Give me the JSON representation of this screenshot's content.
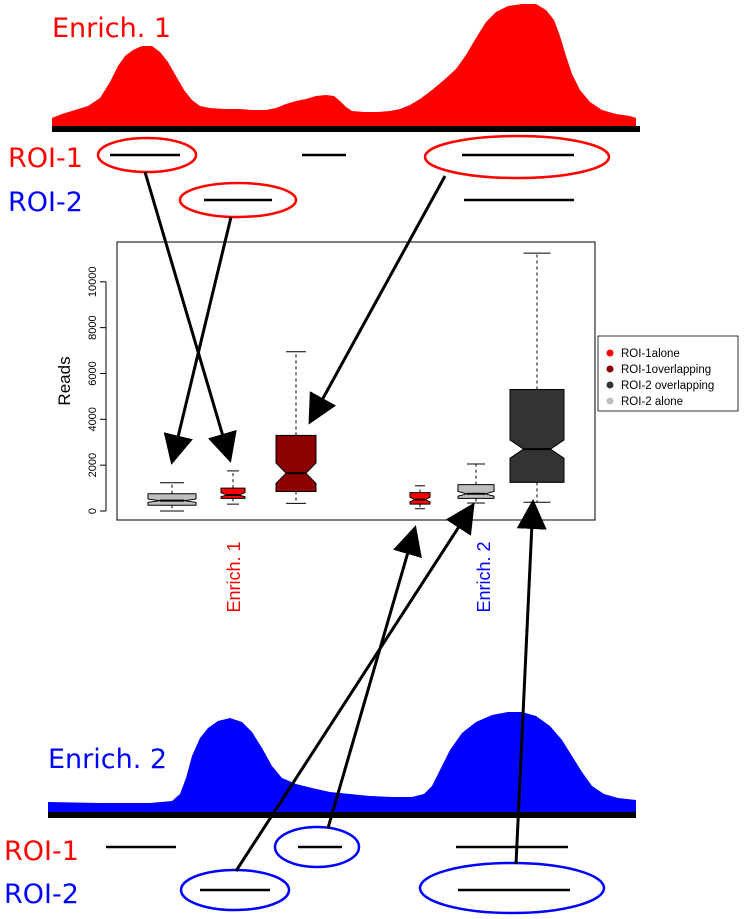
{
  "top_panel": {
    "title": "Enrich. 1",
    "title_color": "#ff0000",
    "fill_color": "#ff0000",
    "roi1_label": "ROI-1",
    "roi2_label": "ROI-2"
  },
  "bottom_panel": {
    "title": "Enrich. 2",
    "title_color": "#0000ff",
    "fill_color": "#0000ff",
    "roi1_label": "ROI-1",
    "roi2_label": "ROI-2"
  },
  "colors": {
    "roi1": "#ff0000",
    "roi2": "#0000ff",
    "arrow": "#000000"
  },
  "chart_data": {
    "type": "boxplot",
    "ylabel": "Reads",
    "ylim": [
      0,
      11300
    ],
    "yticks": [
      0,
      2000,
      4000,
      6000,
      8000,
      10000
    ],
    "groups": [
      {
        "label": "Enrich. 1",
        "color": "#ff0000"
      },
      {
        "label": "Enrich. 2",
        "color": "#0000ff"
      }
    ],
    "legend_position": "right",
    "legend": [
      {
        "name": "ROI-1alone",
        "color": "#ff0000"
      },
      {
        "name": "ROI-1overlapping",
        "color": "#8b0000"
      },
      {
        "name": "ROI-2 overlapping",
        "color": "#333333"
      },
      {
        "name": "ROI-2 alone",
        "color": "#bebebe"
      }
    ],
    "boxes": [
      {
        "series": "ROI-2 alone",
        "group": "Enrich. 1",
        "color": "#bebebe",
        "whisker_low": 0,
        "q1": 250,
        "median": 450,
        "q3": 750,
        "whisker_high": 1230,
        "notch_low": 380,
        "notch_high": 520
      },
      {
        "series": "ROI-1alone",
        "group": "Enrich. 1",
        "color": "#ff0000",
        "whisker_low": 300,
        "q1": 550,
        "median": 700,
        "q3": 1000,
        "whisker_high": 1750,
        "notch_low": 620,
        "notch_high": 800
      },
      {
        "series": "ROI-1overlapping",
        "group": "Enrich. 1",
        "color": "#8b0000",
        "whisker_low": 330,
        "q1": 850,
        "median": 1650,
        "q3": 3300,
        "whisker_high": 6950,
        "notch_low": 1200,
        "notch_high": 2100
      },
      {
        "series": "ROI-1alone",
        "group": "Enrich. 2",
        "color": "#ff0000",
        "whisker_low": 100,
        "q1": 300,
        "median": 500,
        "q3": 800,
        "whisker_high": 1100,
        "notch_low": 400,
        "notch_high": 600
      },
      {
        "series": "ROI-2 alone",
        "group": "Enrich. 2",
        "color": "#bebebe",
        "whisker_low": 350,
        "q1": 550,
        "median": 750,
        "q3": 1150,
        "whisker_high": 2050,
        "notch_low": 650,
        "notch_high": 850
      },
      {
        "series": "ROI-2 overlapping",
        "group": "Enrich. 2",
        "color": "#333333",
        "whisker_low": 380,
        "q1": 1250,
        "median": 2700,
        "q3": 5300,
        "whisker_high": 11250,
        "notch_low": 2300,
        "notch_high": 3100
      }
    ]
  }
}
